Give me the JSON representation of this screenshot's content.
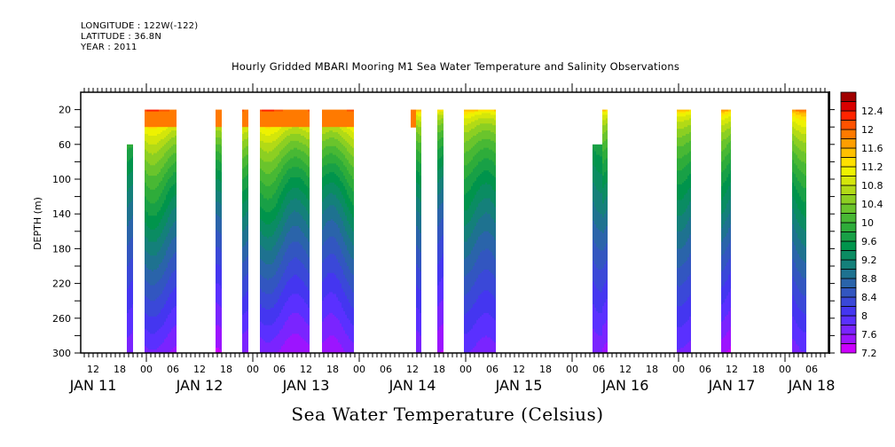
{
  "header": {
    "longitude": "LONGITUDE : 122W(-122)",
    "latitude": "LATITUDE : 36.8N",
    "year": "YEAR : 2011"
  },
  "chart_data": {
    "type": "heatmap",
    "title": "Hourly Gridded MBARI Mooring M1 Sea Water Temperature and Salinity Observations",
    "xlabel": "Sea Water Temperature (Celsius)",
    "ylabel": "DEPTH (m)",
    "y_range": [
      0,
      300
    ],
    "y_inverted": true,
    "y_ticks": [
      20,
      60,
      100,
      140,
      180,
      220,
      260,
      300
    ],
    "x_range_hours_from_jan11_00": [
      9.2,
      177.8
    ],
    "x_hour_ticks": [
      {
        "h": 12,
        "label": "12"
      },
      {
        "h": 18,
        "label": "18"
      },
      {
        "h": 24,
        "label": "00"
      },
      {
        "h": 30,
        "label": "06"
      },
      {
        "h": 36,
        "label": "12"
      },
      {
        "h": 42,
        "label": "18"
      },
      {
        "h": 48,
        "label": "00"
      },
      {
        "h": 54,
        "label": "06"
      },
      {
        "h": 60,
        "label": "12"
      },
      {
        "h": 66,
        "label": "18"
      },
      {
        "h": 72,
        "label": "00"
      },
      {
        "h": 78,
        "label": "06"
      },
      {
        "h": 84,
        "label": "12"
      },
      {
        "h": 90,
        "label": "18"
      },
      {
        "h": 96,
        "label": "00"
      },
      {
        "h": 102,
        "label": "06"
      },
      {
        "h": 108,
        "label": "12"
      },
      {
        "h": 114,
        "label": "18"
      },
      {
        "h": 120,
        "label": "00"
      },
      {
        "h": 126,
        "label": "06"
      },
      {
        "h": 132,
        "label": "12"
      },
      {
        "h": 138,
        "label": "18"
      },
      {
        "h": 144,
        "label": "00"
      },
      {
        "h": 150,
        "label": "06"
      },
      {
        "h": 156,
        "label": "12"
      },
      {
        "h": 162,
        "label": "18"
      },
      {
        "h": 168,
        "label": "00"
      },
      {
        "h": 174,
        "label": "06"
      }
    ],
    "x_day_labels": [
      {
        "h": 12,
        "label": "JAN 11"
      },
      {
        "h": 36,
        "label": "JAN 12"
      },
      {
        "h": 60,
        "label": "JAN 13"
      },
      {
        "h": 84,
        "label": "JAN 14"
      },
      {
        "h": 108,
        "label": "JAN 15"
      },
      {
        "h": 132,
        "label": "JAN 16"
      },
      {
        "h": 156,
        "label": "JAN 17"
      },
      {
        "h": 174,
        "label": "JAN 18"
      }
    ],
    "colorbar": {
      "min": 7.2,
      "max": 12.4,
      "step": 0.2,
      "labels": [
        "12.4",
        "12",
        "11.6",
        "11.2",
        "10.8",
        "10.4",
        "10",
        "9.6",
        "9.2",
        "8.8",
        "8.4",
        "8",
        "7.6",
        "7.2"
      ],
      "colors": [
        "#cc00ff",
        "#9c14ff",
        "#7a24ff",
        "#5a30ff",
        "#4436f0",
        "#3a48d8",
        "#3256c0",
        "#2a64aa",
        "#1e7290",
        "#14807a",
        "#0a8c62",
        "#00944c",
        "#18a046",
        "#2eac3a",
        "#48b834",
        "#6ac42c",
        "#8ccf22",
        "#b2da16",
        "#d4e60a",
        "#eef200",
        "#ffe000",
        "#ffc000",
        "#ff9e00",
        "#ff7a00",
        "#ff5200",
        "#ff2400",
        "#d80000",
        "#a00000"
      ]
    },
    "columns": [
      {
        "start_h": 19.6,
        "end_h": 21.0,
        "top_depth": 60,
        "surface_temp": 11.1,
        "bottom_temp": 7.7
      },
      {
        "start_h": 23.6,
        "end_h": 30.8,
        "top_depth": 20,
        "surface_temp": 12.0,
        "bottom_temp": 7.6
      },
      {
        "start_h": 39.6,
        "end_h": 41.0,
        "top_depth": 20,
        "surface_temp": 12.0,
        "bottom_temp": 7.5
      },
      {
        "start_h": 45.6,
        "end_h": 47.0,
        "top_depth": 20,
        "surface_temp": 12.0,
        "bottom_temp": 7.6
      },
      {
        "start_h": 49.6,
        "end_h": 60.8,
        "top_depth": 20,
        "surface_temp": 12.0,
        "bottom_temp": 7.5
      },
      {
        "start_h": 63.6,
        "end_h": 70.8,
        "top_depth": 20,
        "surface_temp": 12.0,
        "bottom_temp": 7.6
      },
      {
        "start_h": 83.6,
        "end_h": 84.8,
        "top_depth": 20,
        "bottom_depth": 40,
        "surface_temp": 12.0,
        "bottom_temp": 11.8
      },
      {
        "start_h": 84.8,
        "end_h": 86.0,
        "top_depth": 20,
        "surface_temp": 11.6,
        "bottom_temp": 7.7
      },
      {
        "start_h": 89.6,
        "end_h": 91.0,
        "top_depth": 20,
        "surface_temp": 11.4,
        "bottom_temp": 7.5
      },
      {
        "start_h": 95.6,
        "end_h": 102.8,
        "top_depth": 20,
        "surface_temp": 11.4,
        "bottom_temp": 7.7
      },
      {
        "start_h": 124.6,
        "end_h": 126.8,
        "top_depth": 60,
        "surface_temp": 10.5,
        "bottom_temp": 7.5
      },
      {
        "start_h": 126.8,
        "end_h": 128.0,
        "top_depth": 20,
        "surface_temp": 11.4,
        "bottom_temp": 7.5
      },
      {
        "start_h": 143.6,
        "end_h": 146.8,
        "top_depth": 20,
        "surface_temp": 11.4,
        "bottom_temp": 7.7
      },
      {
        "start_h": 153.6,
        "end_h": 155.8,
        "top_depth": 20,
        "surface_temp": 11.5,
        "bottom_temp": 7.3
      },
      {
        "start_h": 169.6,
        "end_h": 172.8,
        "top_depth": 20,
        "surface_temp": 11.8,
        "bottom_temp": 7.7
      }
    ]
  }
}
